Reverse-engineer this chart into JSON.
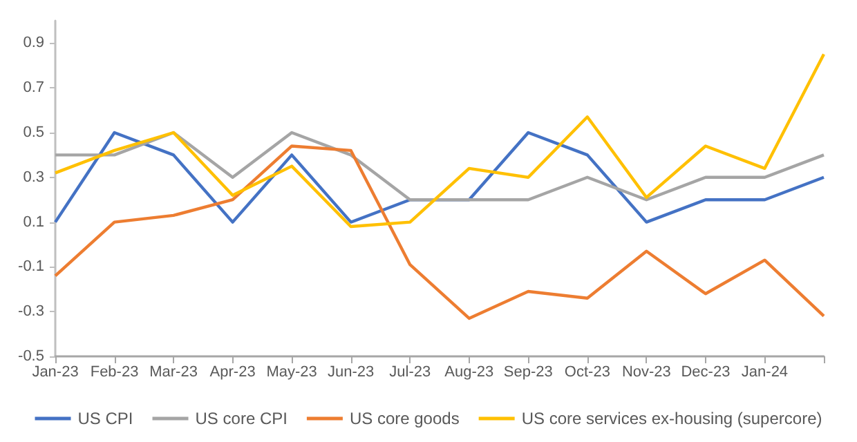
{
  "chart_data": {
    "type": "line",
    "categories": [
      "Jan-23",
      "Feb-23",
      "Mar-23",
      "Apr-23",
      "May-23",
      "Jun-23",
      "Jul-23",
      "Aug-23",
      "Sep-23",
      "Oct-23",
      "Nov-23",
      "Dec-23",
      "Jan-24",
      null
    ],
    "series": [
      {
        "name": "US CPI",
        "color": "#4472c4",
        "values": [
          0.1,
          0.5,
          0.4,
          0.1,
          0.4,
          0.1,
          0.2,
          0.2,
          0.5,
          0.4,
          0.1,
          0.2,
          0.2,
          0.3
        ]
      },
      {
        "name": "US core CPI",
        "color": "#a5a5a5",
        "values": [
          0.4,
          0.4,
          0.5,
          0.3,
          0.5,
          0.4,
          0.2,
          0.2,
          0.2,
          0.3,
          0.2,
          0.3,
          0.3,
          0.4
        ]
      },
      {
        "name": "US core goods",
        "color": "#ed7d31",
        "values": [
          -0.14,
          0.1,
          0.13,
          0.2,
          0.44,
          0.42,
          -0.09,
          -0.33,
          -0.21,
          -0.24,
          -0.03,
          -0.22,
          -0.07,
          -0.32
        ]
      },
      {
        "name": "US core services ex-housing (supercore)",
        "color": "#ffc000",
        "values": [
          0.32,
          0.42,
          0.5,
          0.22,
          0.35,
          0.08,
          0.1,
          0.34,
          0.3,
          0.57,
          0.21,
          0.44,
          0.34,
          0.85
        ]
      }
    ],
    "ylim": [
      -0.5,
      1.0
    ],
    "yticks": [
      -0.5,
      -0.3,
      -0.1,
      0.1,
      0.3,
      0.5,
      0.7,
      0.9
    ],
    "grid": false,
    "legend": "bottom",
    "marker": "none",
    "line_style": "solid"
  }
}
